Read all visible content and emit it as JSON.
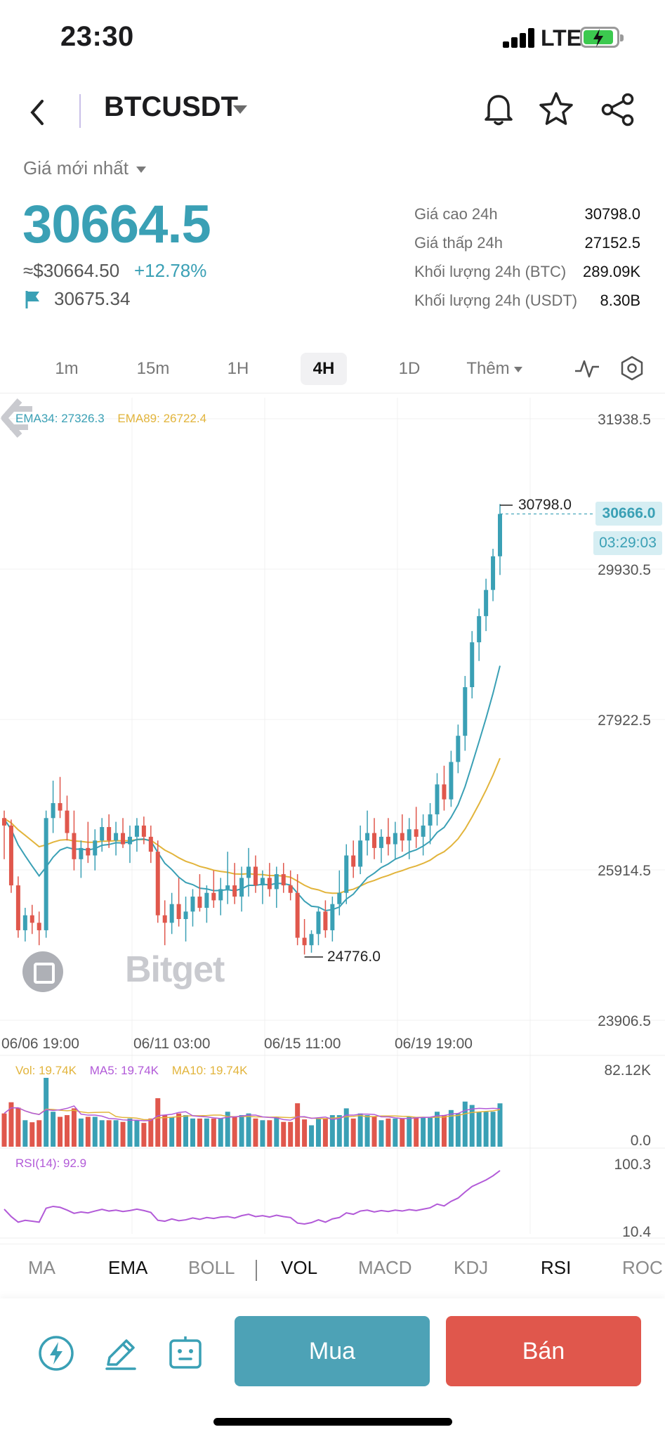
{
  "status_bar": {
    "time": "23:30",
    "network": "LTE"
  },
  "nav": {
    "pair": "BTCUSDT",
    "icons": [
      "back-icon",
      "bell-icon",
      "star-icon",
      "share-icon"
    ]
  },
  "price": {
    "latest_label": "Giá mới nhất",
    "last": "30664.5",
    "usd": "≈$30664.50",
    "change": "+12.78%",
    "mark": "30675.34",
    "up_color": "#3aa0b5",
    "down_color": "#e0574c"
  },
  "stats": [
    {
      "label": "Giá cao 24h",
      "value": "30798.0"
    },
    {
      "label": "Giá thấp 24h",
      "value": "27152.5"
    },
    {
      "label": "Khối lượng 24h (BTC)",
      "value": "289.09K"
    },
    {
      "label": "Khối lượng 24h (USDT)",
      "value": "8.30B"
    }
  ],
  "timeframes": {
    "items": [
      "1m",
      "15m",
      "1H",
      "4H",
      "1D"
    ],
    "active": "4H",
    "more": "Thêm"
  },
  "chart": {
    "ema34_label": "EMA34: 27326.3",
    "ema89_label": "EMA89: 26722.4",
    "y_ticks": [
      "31938.5",
      "29930.5",
      "27922.5",
      "25914.5",
      "23906.5"
    ],
    "x_ticks": [
      "06/06 19:00",
      "06/11 03:00",
      "06/15 11:00",
      "06/19 19:00"
    ],
    "current_price": "30666.0",
    "countdown": "03:29:03",
    "high_label": "30798.0",
    "low_label": "24776.0",
    "watermark": "Bitget",
    "vol_label": "Vol: 19.74K",
    "ma5_label": "MA5: 19.74K",
    "ma10_label": "MA10: 19.74K",
    "vol_max": "82.12K",
    "vol_min": "0.0",
    "rsi_label": "RSI(14): 92.9",
    "rsi_max": "100.3",
    "rsi_min": "10.4"
  },
  "chart_data": {
    "type": "candlestick",
    "interval": "4H",
    "y_range": [
      23906.5,
      31938.5
    ],
    "candles": [
      [
        26600,
        26700,
        26050,
        26500
      ],
      [
        26500,
        26580,
        25600,
        25700
      ],
      [
        25700,
        25820,
        25000,
        25100
      ],
      [
        25100,
        25400,
        24950,
        25300
      ],
      [
        25300,
        25440,
        25050,
        25200
      ],
      [
        25200,
        25350,
        24900,
        25100
      ],
      [
        25100,
        26700,
        25000,
        26600
      ],
      [
        26600,
        27100,
        26400,
        26800
      ],
      [
        26800,
        27150,
        26600,
        26700
      ],
      [
        26700,
        26900,
        26300,
        26400
      ],
      [
        26400,
        26700,
        25900,
        26050
      ],
      [
        26050,
        26300,
        25800,
        26200
      ],
      [
        26200,
        26550,
        26000,
        26100
      ],
      [
        26100,
        26450,
        25900,
        26300
      ],
      [
        26300,
        26600,
        26150,
        26480
      ],
      [
        26480,
        26650,
        26200,
        26300
      ],
      [
        26300,
        26550,
        26100,
        26400
      ],
      [
        26400,
        26600,
        26200,
        26250
      ],
      [
        26250,
        26500,
        26000,
        26350
      ],
      [
        26350,
        26600,
        26150,
        26500
      ],
      [
        26500,
        26620,
        26250,
        26350
      ],
      [
        26350,
        26500,
        26000,
        26150
      ],
      [
        26150,
        26300,
        25200,
        25300
      ],
      [
        25300,
        25500,
        24900,
        25200
      ],
      [
        25200,
        25600,
        25050,
        25450
      ],
      [
        25450,
        25800,
        25150,
        25250
      ],
      [
        25250,
        25550,
        24950,
        25350
      ],
      [
        25350,
        25650,
        25150,
        25550
      ],
      [
        25550,
        25850,
        25350,
        25400
      ],
      [
        25400,
        25700,
        25200,
        25600
      ],
      [
        25600,
        25900,
        25400,
        25500
      ],
      [
        25500,
        25800,
        25300,
        25650
      ],
      [
        25650,
        26150,
        25450,
        25700
      ],
      [
        25700,
        26000,
        25450,
        25550
      ],
      [
        25550,
        25950,
        25350,
        25800
      ],
      [
        25800,
        26200,
        25550,
        25950
      ],
      [
        25950,
        26100,
        25600,
        25700
      ],
      [
        25700,
        25900,
        25450,
        25800
      ],
      [
        25800,
        26000,
        25550,
        25650
      ],
      [
        25650,
        25950,
        25400,
        25850
      ],
      [
        25850,
        26000,
        25600,
        25700
      ],
      [
        25700,
        25900,
        25500,
        25600
      ],
      [
        25600,
        25850,
        24900,
        25000
      ],
      [
        25000,
        25250,
        24776,
        24900
      ],
      [
        24900,
        25100,
        24800,
        25050
      ],
      [
        25050,
        25400,
        24900,
        25350
      ],
      [
        25350,
        25500,
        25000,
        25100
      ],
      [
        25100,
        25550,
        24950,
        25450
      ],
      [
        25450,
        25900,
        25300,
        25600
      ],
      [
        25600,
        26250,
        25450,
        26100
      ],
      [
        26100,
        26300,
        25800,
        25950
      ],
      [
        25950,
        26500,
        25850,
        26300
      ],
      [
        26300,
        26700,
        26100,
        26400
      ],
      [
        26400,
        26600,
        26050,
        26200
      ],
      [
        26200,
        26450,
        26000,
        26350
      ],
      [
        26350,
        26600,
        26100,
        26250
      ],
      [
        26250,
        26550,
        26050,
        26400
      ],
      [
        26400,
        26650,
        26150,
        26300
      ],
      [
        26300,
        26600,
        26050,
        26450
      ],
      [
        26450,
        26750,
        26200,
        26350
      ],
      [
        26350,
        26650,
        26100,
        26500
      ],
      [
        26500,
        26800,
        26250,
        26650
      ],
      [
        26650,
        27200,
        26500,
        27050
      ],
      [
        27050,
        27300,
        26700,
        26850
      ],
      [
        26850,
        27500,
        26750,
        27350
      ],
      [
        27350,
        27850,
        27200,
        27700
      ],
      [
        27700,
        28500,
        27500,
        28350
      ],
      [
        28350,
        29100,
        28200,
        28950
      ],
      [
        28950,
        29400,
        28700,
        29300
      ],
      [
        29300,
        29800,
        29100,
        29650
      ],
      [
        29650,
        30200,
        29500,
        30100
      ],
      [
        30100,
        30798,
        29850,
        30666
      ]
    ]
  }
}
